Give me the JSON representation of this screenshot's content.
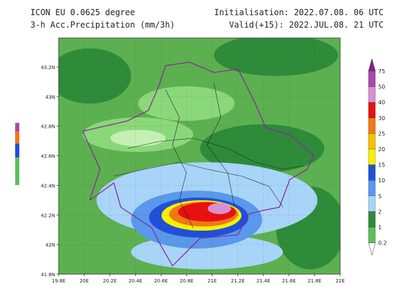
{
  "header": {
    "model": "ICON EU 0.0625 degree",
    "field": "3-h Acc.Precipitation (mm/3h)",
    "init": "Initialisation: 2022.07.08. 06 UTC",
    "valid": "Valid(+15): 2022.JUL.08. 21 UTC"
  },
  "map": {
    "x_labels": [
      "19.8E",
      "20E",
      "20.2E",
      "20.4E",
      "20.6E",
      "20.8E",
      "21E",
      "21.2E",
      "21.4E",
      "21.6E",
      "21.8E",
      "22E"
    ],
    "y_labels": [
      "43.2N",
      "43N",
      "42.8N",
      "42.6N",
      "42.4N",
      "42.2N",
      "42N",
      "41.8N"
    ]
  },
  "colorbar": {
    "levels": [
      75,
      50,
      40,
      30,
      25,
      20,
      15,
      10,
      5,
      2,
      1,
      0.2
    ],
    "colors": [
      "#8a1f8a",
      "#a84aa8",
      "#d890d0",
      "#e81010",
      "#f07818",
      "#f8c000",
      "#f8f000",
      "#2050d8",
      "#5a98ec",
      "#a8d4f8",
      "#2e8b3a",
      "#5cc05a",
      "#a8f0a0",
      "#ffffff"
    ]
  }
}
